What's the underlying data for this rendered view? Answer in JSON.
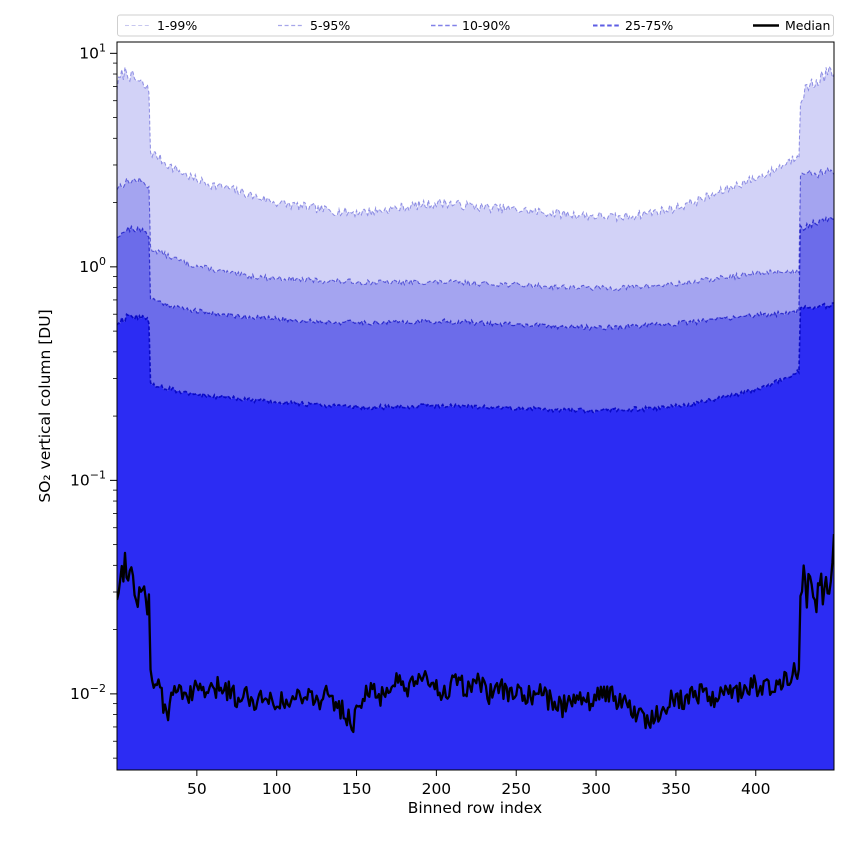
{
  "figure": {
    "background": "#ffffff"
  },
  "chart_data": {
    "type": "area",
    "title": "",
    "xlabel": "Binned row index",
    "ylabel": "SO₂ vertical column [DU]",
    "y_scale": "log",
    "xlim": [
      0,
      449
    ],
    "ylim": [
      0.0044,
      11.3
    ],
    "x_ticks": [
      50,
      100,
      150,
      200,
      250,
      300,
      350,
      400
    ],
    "y_tick_exponents": [
      1,
      0,
      -1,
      -2
    ],
    "grid": "off",
    "legend": {
      "position": "top",
      "border_color": "#cfcfcf",
      "entries": [
        {
          "label": "1-99%",
          "color": "#c7c7ef",
          "dash": "4 2.6",
          "width": 1.1
        },
        {
          "label": "5-95%",
          "color": "#a6a6ea",
          "dash": "4 2.6",
          "width": 1.2
        },
        {
          "label": "10-90%",
          "color": "#8181e8",
          "dash": "4.5 2.6",
          "width": 1.5
        },
        {
          "label": "25-75%",
          "color": "#5d5de4",
          "dash": "4.5 2.6",
          "width": 2.1
        },
        {
          "label": "Median",
          "color": "#000000",
          "dash": "",
          "width": 2.6
        }
      ]
    },
    "band_fill_colors": [
      "#d2d2f7",
      "#a4a4f0",
      "#6c6cea",
      "#2c2cf3"
    ],
    "boundary_line_color": "#0000be",
    "boundary_line_opacities": [
      0.38,
      0.52,
      0.66,
      0.85
    ],
    "boundary_line_widths": [
      1.05,
      1.1,
      1.25,
      1.6
    ],
    "boundary_dash": "3.8 2.2",
    "median_color": "#000000",
    "median_width": 2.3,
    "series": [
      {
        "name": "p99",
        "legend": "1-99%",
        "noise": 0.022,
        "anchors": [
          [
            0,
            7.0
          ],
          [
            3,
            7.9
          ],
          [
            6,
            8.3
          ],
          [
            9,
            7.7
          ],
          [
            12,
            7.5
          ],
          [
            15,
            7.2
          ],
          [
            18,
            6.9
          ],
          [
            20.6,
            6.6
          ],
          [
            21,
            3.45
          ],
          [
            25,
            3.3
          ],
          [
            32,
            3.0
          ],
          [
            40,
            2.78
          ],
          [
            50,
            2.55
          ],
          [
            60,
            2.42
          ],
          [
            70,
            2.33
          ],
          [
            85,
            2.15
          ],
          [
            100,
            2.0
          ],
          [
            115,
            1.92
          ],
          [
            130,
            1.85
          ],
          [
            145,
            1.8
          ],
          [
            160,
            1.82
          ],
          [
            175,
            1.88
          ],
          [
            190,
            1.95
          ],
          [
            205,
            2.0
          ],
          [
            215,
            1.95
          ],
          [
            230,
            1.9
          ],
          [
            245,
            1.87
          ],
          [
            260,
            1.82
          ],
          [
            275,
            1.78
          ],
          [
            290,
            1.75
          ],
          [
            305,
            1.72
          ],
          [
            315,
            1.7
          ],
          [
            330,
            1.78
          ],
          [
            345,
            1.85
          ],
          [
            360,
            2.0
          ],
          [
            375,
            2.2
          ],
          [
            390,
            2.45
          ],
          [
            400,
            2.6
          ],
          [
            410,
            2.8
          ],
          [
            420,
            3.1
          ],
          [
            427.6,
            3.4
          ],
          [
            428,
            6.2
          ],
          [
            432,
            6.9
          ],
          [
            437,
            7.3
          ],
          [
            442,
            7.8
          ],
          [
            446,
            8.2
          ],
          [
            449,
            7.8
          ]
        ]
      },
      {
        "name": "p95",
        "legend": "5-95%",
        "noise": 0.013,
        "anchors": [
          [
            0,
            2.35
          ],
          [
            6,
            2.5
          ],
          [
            12,
            2.55
          ],
          [
            18,
            2.45
          ],
          [
            20.6,
            2.35
          ],
          [
            21,
            1.22
          ],
          [
            26,
            1.18
          ],
          [
            35,
            1.1
          ],
          [
            45,
            1.03
          ],
          [
            60,
            0.97
          ],
          [
            75,
            0.92
          ],
          [
            90,
            0.895
          ],
          [
            110,
            0.875
          ],
          [
            130,
            0.86
          ],
          [
            150,
            0.85
          ],
          [
            170,
            0.845
          ],
          [
            190,
            0.85
          ],
          [
            210,
            0.845
          ],
          [
            230,
            0.835
          ],
          [
            250,
            0.825
          ],
          [
            270,
            0.81
          ],
          [
            290,
            0.8
          ],
          [
            310,
            0.795
          ],
          [
            330,
            0.81
          ],
          [
            350,
            0.83
          ],
          [
            370,
            0.87
          ],
          [
            385,
            0.9
          ],
          [
            400,
            0.93
          ],
          [
            412,
            0.95
          ],
          [
            420,
            0.95
          ],
          [
            427.6,
            0.95
          ],
          [
            428,
            2.75
          ],
          [
            433,
            2.85
          ],
          [
            438,
            2.7
          ],
          [
            443,
            2.8
          ],
          [
            447,
            2.9
          ],
          [
            449,
            2.6
          ]
        ]
      },
      {
        "name": "p90",
        "legend": "10-90%",
        "noise": 0.012,
        "anchors": [
          [
            0,
            1.4
          ],
          [
            5,
            1.48
          ],
          [
            10,
            1.52
          ],
          [
            15,
            1.47
          ],
          [
            20.6,
            1.42
          ],
          [
            21,
            0.71
          ],
          [
            28,
            0.68
          ],
          [
            38,
            0.645
          ],
          [
            50,
            0.62
          ],
          [
            65,
            0.6
          ],
          [
            80,
            0.585
          ],
          [
            100,
            0.57
          ],
          [
            120,
            0.558
          ],
          [
            140,
            0.55
          ],
          [
            160,
            0.548
          ],
          [
            180,
            0.552
          ],
          [
            200,
            0.556
          ],
          [
            220,
            0.55
          ],
          [
            240,
            0.54
          ],
          [
            260,
            0.532
          ],
          [
            280,
            0.525
          ],
          [
            300,
            0.52
          ],
          [
            320,
            0.525
          ],
          [
            340,
            0.535
          ],
          [
            360,
            0.55
          ],
          [
            380,
            0.575
          ],
          [
            395,
            0.59
          ],
          [
            410,
            0.6
          ],
          [
            420,
            0.61
          ],
          [
            427.6,
            0.62
          ],
          [
            428,
            1.52
          ],
          [
            433,
            1.58
          ],
          [
            438,
            1.62
          ],
          [
            444,
            1.68
          ],
          [
            449,
            1.7
          ]
        ]
      },
      {
        "name": "p75",
        "legend": "25-75%",
        "noise": 0.011,
        "anchors": [
          [
            0,
            0.545
          ],
          [
            5,
            0.575
          ],
          [
            10,
            0.59
          ],
          [
            15,
            0.575
          ],
          [
            20.6,
            0.56
          ],
          [
            21,
            0.285
          ],
          [
            28,
            0.272
          ],
          [
            38,
            0.262
          ],
          [
            50,
            0.252
          ],
          [
            65,
            0.245
          ],
          [
            80,
            0.24
          ],
          [
            100,
            0.232
          ],
          [
            120,
            0.227
          ],
          [
            140,
            0.222
          ],
          [
            160,
            0.22
          ],
          [
            180,
            0.222
          ],
          [
            200,
            0.224
          ],
          [
            220,
            0.222
          ],
          [
            240,
            0.219
          ],
          [
            260,
            0.216
          ],
          [
            280,
            0.213
          ],
          [
            300,
            0.212
          ],
          [
            320,
            0.215
          ],
          [
            340,
            0.218
          ],
          [
            360,
            0.228
          ],
          [
            380,
            0.245
          ],
          [
            395,
            0.26
          ],
          [
            410,
            0.285
          ],
          [
            420,
            0.305
          ],
          [
            427.6,
            0.325
          ],
          [
            428,
            0.63
          ],
          [
            434,
            0.645
          ],
          [
            440,
            0.655
          ],
          [
            445,
            0.665
          ],
          [
            449,
            0.66
          ]
        ]
      },
      {
        "name": "median",
        "legend": "Median",
        "noise": 0.052,
        "anchors": [
          [
            0,
            0.03
          ],
          [
            3,
            0.037
          ],
          [
            5,
            0.042
          ],
          [
            7,
            0.04
          ],
          [
            9,
            0.036
          ],
          [
            11,
            0.03
          ],
          [
            13,
            0.028
          ],
          [
            15,
            0.034
          ],
          [
            17,
            0.036
          ],
          [
            18.5,
            0.021
          ],
          [
            19.5,
            0.028
          ],
          [
            20.6,
            0.03
          ],
          [
            21,
            0.013
          ],
          [
            23,
            0.0115
          ],
          [
            26,
            0.0105
          ],
          [
            29,
            0.009
          ],
          [
            32,
            0.0078
          ],
          [
            35,
            0.0102
          ],
          [
            40,
            0.0108
          ],
          [
            46,
            0.0098
          ],
          [
            52,
            0.0107
          ],
          [
            58,
            0.0099
          ],
          [
            64,
            0.0108
          ],
          [
            70,
            0.0104
          ],
          [
            76,
            0.0095
          ],
          [
            82,
            0.01
          ],
          [
            88,
            0.0092
          ],
          [
            94,
            0.0099
          ],
          [
            100,
            0.0094
          ],
          [
            106,
            0.0089
          ],
          [
            112,
            0.0096
          ],
          [
            118,
            0.0104
          ],
          [
            124,
            0.0092
          ],
          [
            130,
            0.0099
          ],
          [
            136,
            0.009
          ],
          [
            142,
            0.0083
          ],
          [
            148,
            0.0072
          ],
          [
            152,
            0.0095
          ],
          [
            158,
            0.0102
          ],
          [
            164,
            0.0096
          ],
          [
            170,
            0.0108
          ],
          [
            176,
            0.0112
          ],
          [
            182,
            0.0104
          ],
          [
            188,
            0.011
          ],
          [
            194,
            0.0118
          ],
          [
            200,
            0.0108
          ],
          [
            206,
            0.0102
          ],
          [
            212,
            0.0112
          ],
          [
            218,
            0.0106
          ],
          [
            224,
            0.0114
          ],
          [
            230,
            0.0104
          ],
          [
            236,
            0.0098
          ],
          [
            242,
            0.0106
          ],
          [
            248,
            0.0098
          ],
          [
            254,
            0.0102
          ],
          [
            260,
            0.0094
          ],
          [
            266,
            0.01
          ],
          [
            272,
            0.0092
          ],
          [
            278,
            0.0086
          ],
          [
            284,
            0.0096
          ],
          [
            290,
            0.01
          ],
          [
            296,
            0.0092
          ],
          [
            302,
            0.0098
          ],
          [
            308,
            0.0102
          ],
          [
            314,
            0.0094
          ],
          [
            320,
            0.0088
          ],
          [
            326,
            0.008
          ],
          [
            332,
            0.0074
          ],
          [
            338,
            0.0082
          ],
          [
            344,
            0.009
          ],
          [
            350,
            0.0098
          ],
          [
            356,
            0.0092
          ],
          [
            362,
            0.01
          ],
          [
            368,
            0.0104
          ],
          [
            374,
            0.0096
          ],
          [
            380,
            0.0104
          ],
          [
            386,
            0.0098
          ],
          [
            392,
            0.0106
          ],
          [
            398,
            0.011
          ],
          [
            404,
            0.0102
          ],
          [
            410,
            0.011
          ],
          [
            416,
            0.0118
          ],
          [
            422,
            0.0125
          ],
          [
            427.6,
            0.0135
          ],
          [
            428,
            0.03
          ],
          [
            430,
            0.034
          ],
          [
            432,
            0.03
          ],
          [
            434,
            0.036
          ],
          [
            436,
            0.031
          ],
          [
            438,
            0.028
          ],
          [
            440,
            0.033
          ],
          [
            442,
            0.03
          ],
          [
            444,
            0.035
          ],
          [
            446,
            0.032
          ],
          [
            448,
            0.036
          ],
          [
            449,
            0.05
          ]
        ]
      }
    ]
  }
}
